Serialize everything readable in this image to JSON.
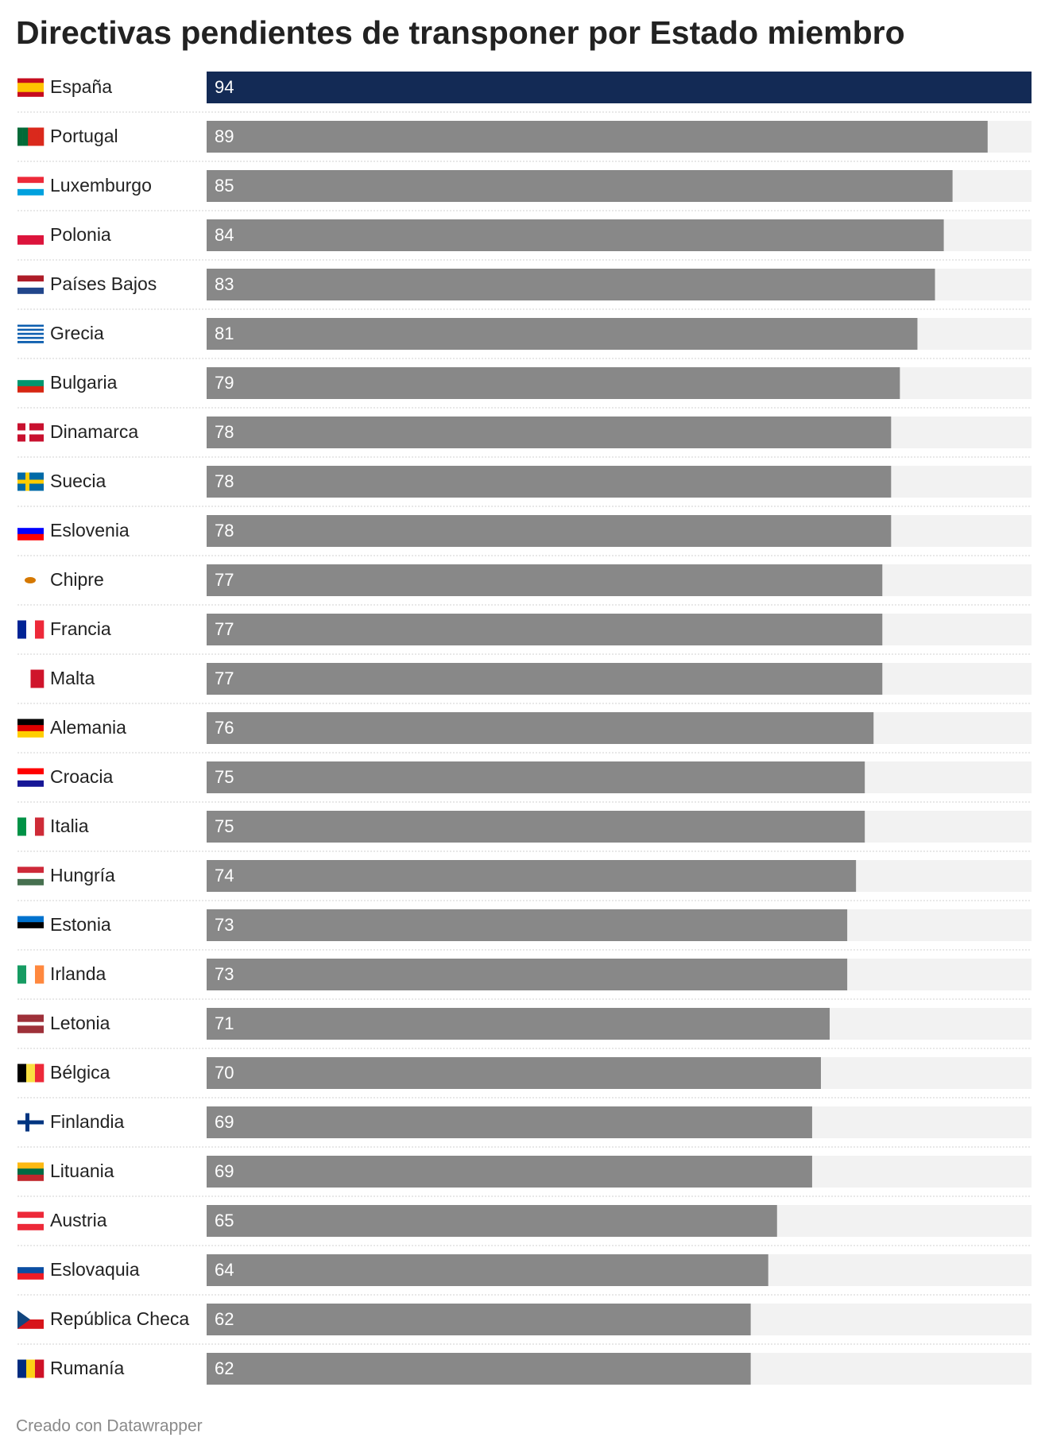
{
  "chart_data": {
    "type": "bar",
    "orientation": "horizontal",
    "title": "Directivas pendientes de transponer por Estado miembro",
    "categories": [
      "España",
      "Portugal",
      "Luxemburgo",
      "Polonia",
      "Países Bajos",
      "Grecia",
      "Bulgaria",
      "Dinamarca",
      "Suecia",
      "Eslovenia",
      "Chipre",
      "Francia",
      "Malta",
      "Alemania",
      "Croacia",
      "Italia",
      "Hungría",
      "Estonia",
      "Irlanda",
      "Letonia",
      "Bélgica",
      "Finlandia",
      "Lituania",
      "Austria",
      "Eslovaquia",
      "República Checa",
      "Rumanía"
    ],
    "values": [
      94,
      89,
      85,
      84,
      83,
      81,
      79,
      78,
      78,
      78,
      77,
      77,
      77,
      76,
      75,
      75,
      74,
      73,
      73,
      71,
      70,
      69,
      69,
      65,
      64,
      62,
      62
    ],
    "colors": [
      "#132a55",
      "#888888",
      "#888888",
      "#888888",
      "#888888",
      "#888888",
      "#888888",
      "#888888",
      "#888888",
      "#888888",
      "#888888",
      "#888888",
      "#888888",
      "#888888",
      "#888888",
      "#888888",
      "#888888",
      "#888888",
      "#888888",
      "#888888",
      "#888888",
      "#888888",
      "#888888",
      "#888888",
      "#888888",
      "#888888",
      "#888888"
    ],
    "track_color": "#f2f2f2",
    "xlim": [
      0,
      94
    ],
    "footer": "Creado con Datawrapper"
  }
}
